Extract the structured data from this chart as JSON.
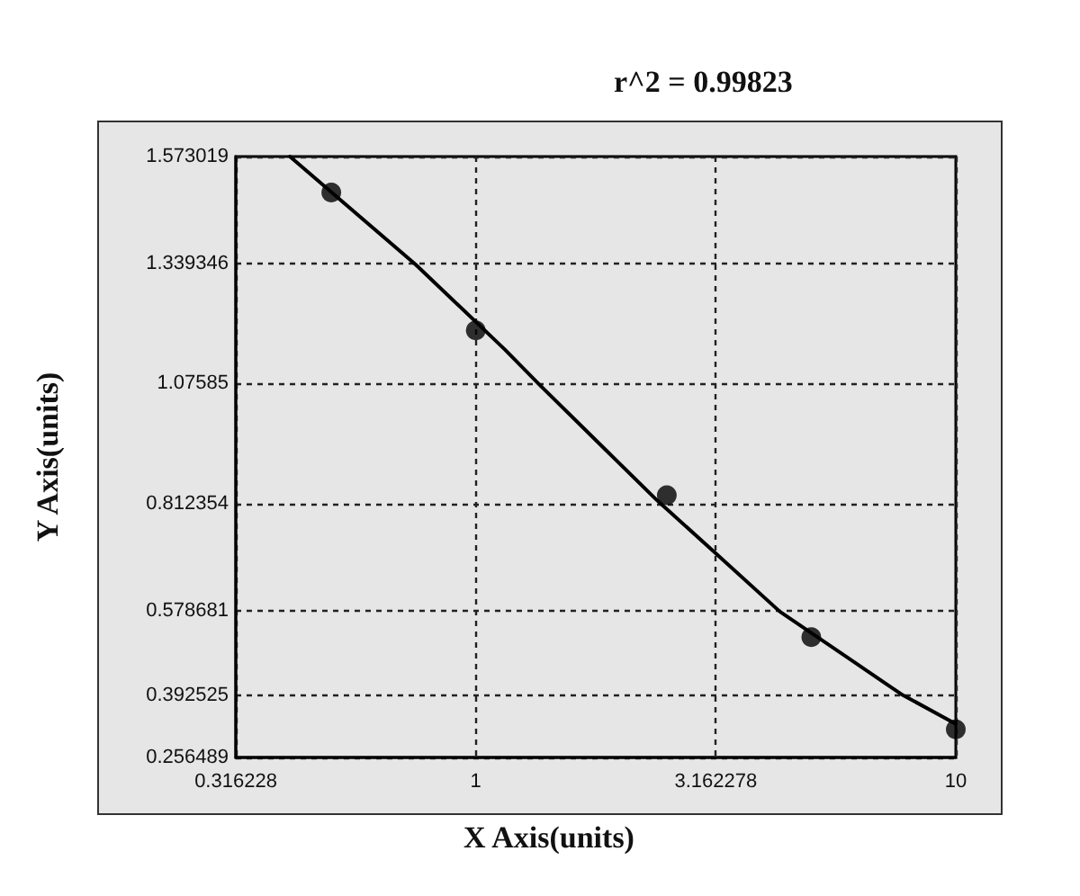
{
  "chart_data": {
    "type": "scatter",
    "title": "r^2 = 0.99823",
    "xlabel": "X Axis(units)",
    "ylabel": "Y Axis(units)",
    "log": "x",
    "grid": true,
    "xlim": [
      0.316228,
      10
    ],
    "xticks": [
      0.316228,
      1,
      3.162278,
      10
    ],
    "ylim": [
      0.256489,
      1.573019
    ],
    "yticks": [
      0.256489,
      0.392525,
      0.578681,
      0.812354,
      1.07585,
      1.339346,
      1.573019
    ],
    "series": [
      {
        "color": "#000000",
        "marker": "circle",
        "x": [
          0.5,
          1,
          2.5,
          5,
          10
        ],
        "values": [
          1.494,
          1.192,
          0.831,
          0.52,
          0.318
        ]
      },
      {
        "type": "line",
        "color": "#000000",
        "marker": "none",
        "line_style": "solid",
        "x": [
          0.41,
          0.75,
          1.15,
          1.36,
          1.87,
          2.39,
          3.16,
          4.3,
          5.9,
          7.7,
          10
        ],
        "values": [
          1.573,
          1.336,
          1.15,
          1.072,
          0.929,
          0.819,
          0.704,
          0.576,
          0.478,
          0.395,
          0.33
        ]
      }
    ]
  }
}
